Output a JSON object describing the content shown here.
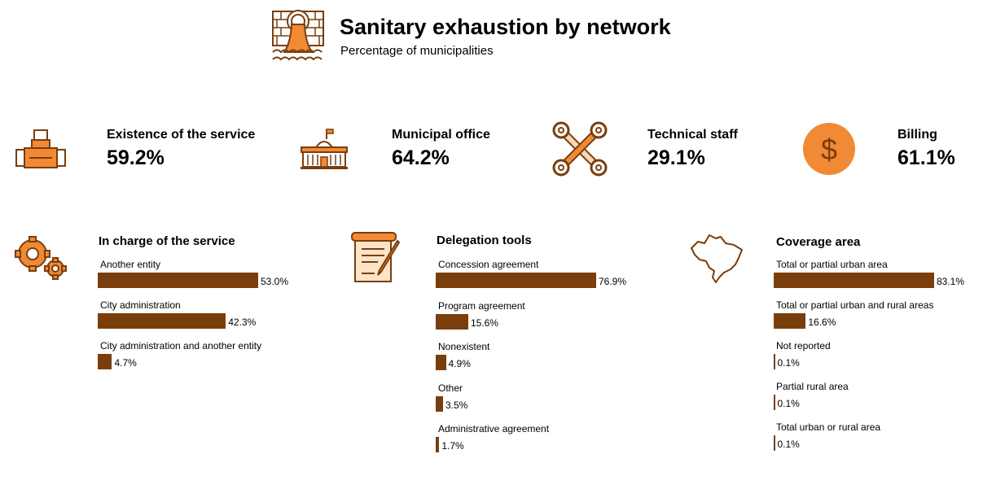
{
  "header": {
    "title": "Sanitary exhaustion by network",
    "subtitle": "Percentage of municipalities"
  },
  "kpis": [
    {
      "label": "Existence of the service",
      "value": "59.2%",
      "icon": "pipe-icon"
    },
    {
      "label": "Municipal office",
      "value": "64.2%",
      "icon": "city-hall-icon"
    },
    {
      "label": "Technical staff",
      "value": "29.1%",
      "icon": "wrenches-icon"
    },
    {
      "label": "Billing",
      "value": "61.1%",
      "icon": "dollar-coin-icon"
    }
  ],
  "colors": {
    "bar": "#7a3e0c",
    "icon_orange": "#f08a35",
    "icon_outline": "#7a3e0c"
  },
  "chart_data": [
    {
      "type": "bar",
      "orientation": "horizontal",
      "title": "In charge of the service",
      "icon": "gears-icon",
      "categories": [
        "Another entity",
        "City administration",
        "City administration and another entity"
      ],
      "values": [
        53.0,
        42.3,
        4.7
      ],
      "value_labels": [
        "53.0%",
        "42.3%",
        "4.7%"
      ],
      "xlim": [
        0,
        100
      ]
    },
    {
      "type": "bar",
      "orientation": "horizontal",
      "title": "Delegation tools",
      "icon": "contract-pen-icon",
      "categories": [
        "Concession agreement",
        "Program agreement",
        "Nonexistent",
        "Other",
        "Administrative agreement"
      ],
      "values": [
        76.9,
        15.6,
        4.9,
        3.5,
        1.7
      ],
      "value_labels": [
        "76.9%",
        "15.6%",
        "4.9%",
        "3.5%",
        "1.7%"
      ],
      "xlim": [
        0,
        100
      ]
    },
    {
      "type": "bar",
      "orientation": "horizontal",
      "title": "Coverage area",
      "icon": "brazil-map-icon",
      "categories": [
        "Total or partial urban area",
        "Total or partial urban and rural areas",
        "Not reported",
        "Partial rural area",
        "Total urban or rural area"
      ],
      "values": [
        83.1,
        16.6,
        0.1,
        0.1,
        0.1
      ],
      "value_labels": [
        "83.1%",
        "16.6%",
        "0.1%",
        "0.1%",
        "0.1%"
      ],
      "xlim": [
        0,
        100
      ]
    }
  ]
}
